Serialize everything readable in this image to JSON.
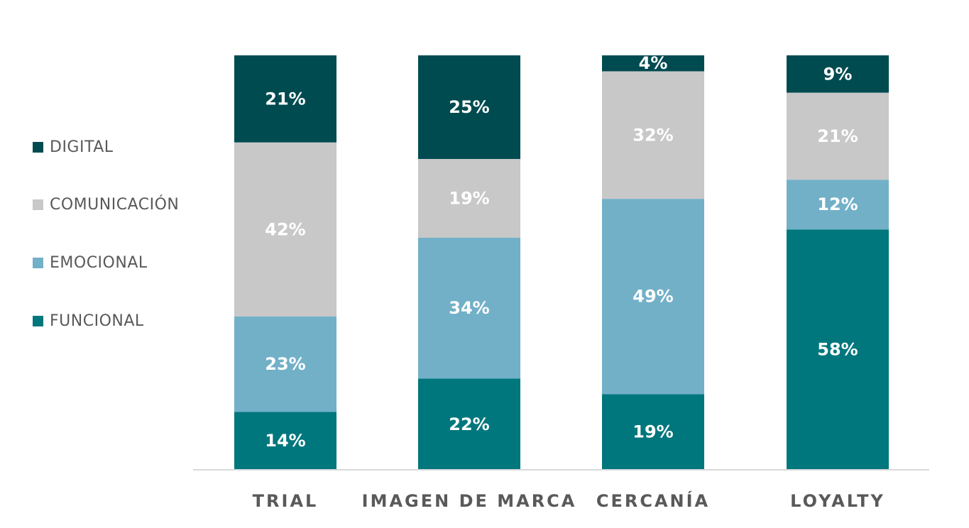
{
  "chart_data": {
    "type": "bar",
    "stacked": true,
    "categories": [
      "TRIAL",
      "IMAGEN  DE  MARCA",
      "CERCANÍA",
      "LOYALTY"
    ],
    "series": [
      {
        "name": "FUNCIONAL",
        "color": "#00777D",
        "values": [
          14,
          22,
          19,
          58
        ],
        "labels": [
          "14%",
          "22%",
          "19%",
          "58%"
        ]
      },
      {
        "name": "EMOCIONAL",
        "color": "#72B0C8",
        "values": [
          23,
          34,
          49,
          12
        ],
        "labels": [
          "23%",
          "34%",
          "49%",
          "12%"
        ]
      },
      {
        "name": "COMUNICACIÓN",
        "color": "#C8C8C8",
        "values": [
          42,
          19,
          32,
          21
        ],
        "labels": [
          "42%",
          "19%",
          "32%",
          "21%"
        ]
      },
      {
        "name": "DIGITAL",
        "color": "#004B50",
        "values": [
          21,
          25,
          4,
          9
        ],
        "labels": [
          "21%",
          "25%",
          "4%",
          "9%"
        ]
      }
    ],
    "ylim": [
      0,
      100
    ],
    "grid": false,
    "legend_position": "left",
    "title": "",
    "xlabel": "",
    "ylabel": ""
  }
}
